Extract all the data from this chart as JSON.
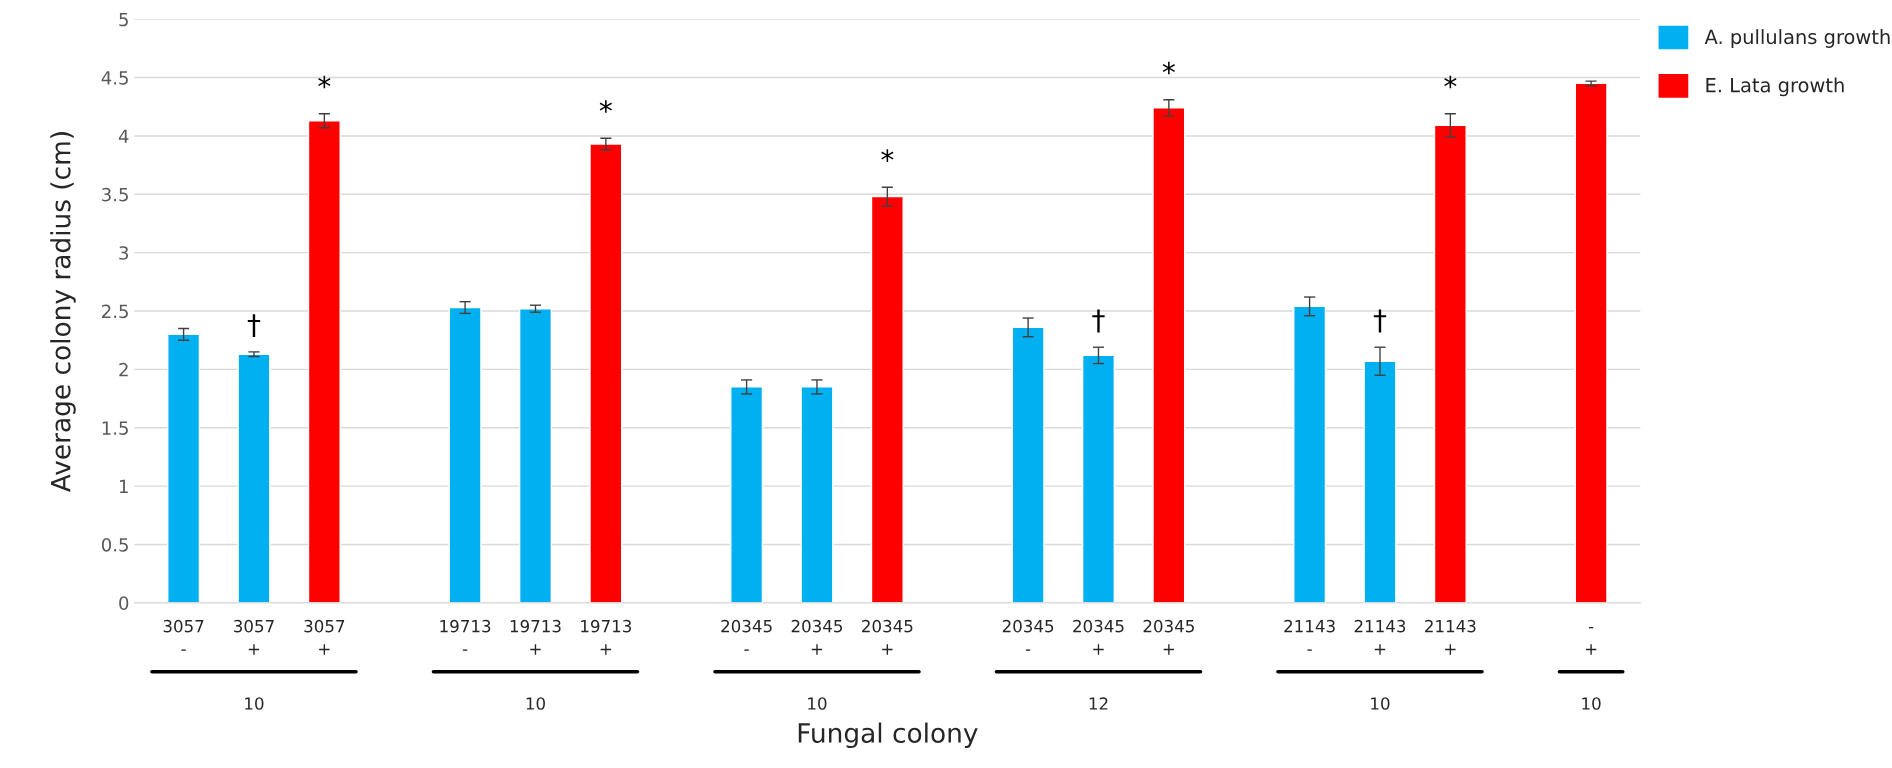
{
  "chart_data": {
    "type": "bar",
    "xlabel": "Fungal colony",
    "ylabel": "Average colony radius (cm)",
    "categories": [
      "3057\n-",
      "3057\n+",
      "3057\n+",
      null,
      "19713\n-",
      "19713\n+",
      "19713\n+",
      null,
      "20345\n-",
      "20345\n+",
      "20345\n+",
      null,
      "20345\n-",
      "20345\n+",
      "20345\n+",
      null,
      "21143\n-",
      "21143\n+",
      "21143\n+",
      null,
      "-\n+"
    ],
    "series": [
      {
        "name": "A. pullulans growth",
        "color": "#00b0f0",
        "values": [
          2.3,
          2.13,
          null,
          null,
          2.53,
          2.52,
          null,
          null,
          1.85,
          1.85,
          null,
          null,
          2.36,
          2.12,
          null,
          null,
          2.54,
          2.07,
          null,
          null,
          null
        ],
        "errors": [
          0.05,
          0.02,
          null,
          null,
          0.05,
          0.03,
          null,
          null,
          0.06,
          0.06,
          null,
          null,
          0.08,
          0.07,
          null,
          null,
          0.08,
          0.12,
          null,
          null,
          null
        ],
        "value_labels": [
          null,
          "†",
          null,
          null,
          null,
          null,
          null,
          null,
          null,
          null,
          null,
          null,
          null,
          "†",
          null,
          null,
          null,
          "†",
          null,
          null,
          null
        ]
      },
      {
        "name": "E. Lata growth",
        "color": "#ff0000",
        "values": [
          null,
          null,
          4.13,
          null,
          null,
          null,
          3.93,
          null,
          null,
          null,
          3.48,
          null,
          null,
          null,
          4.24,
          null,
          null,
          null,
          4.09,
          null,
          4.45
        ],
        "errors": [
          null,
          null,
          0.06,
          null,
          null,
          null,
          0.05,
          null,
          null,
          null,
          0.08,
          null,
          null,
          null,
          0.07,
          null,
          null,
          null,
          0.1,
          null,
          0.02
        ],
        "value_labels": [
          null,
          null,
          "*",
          null,
          null,
          null,
          "*",
          null,
          null,
          null,
          "*",
          null,
          null,
          null,
          "*",
          null,
          null,
          null,
          "*",
          null,
          null
        ]
      }
    ],
    "annotations": [
      "10",
      "10",
      "10",
      "12",
      "10",
      "10"
    ],
    "ylim": [
      0,
      5
    ],
    "yticks": [
      0,
      0.5,
      1,
      1.5,
      2,
      2.5,
      3,
      3.5,
      4,
      4.5,
      5
    ],
    "grid": "y",
    "legend": "top right"
  }
}
